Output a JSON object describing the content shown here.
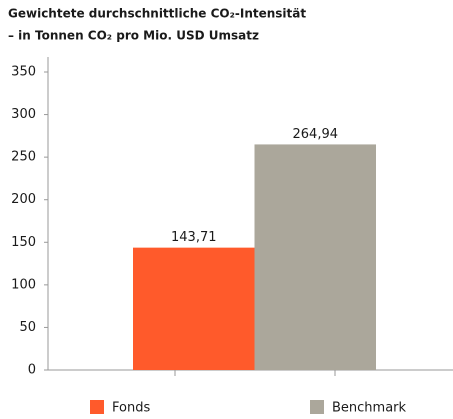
{
  "chart_data": {
    "type": "bar",
    "title": "Gewichtete durchschnittliche CO₂-Intensität",
    "subtitle": "– in Tonnen CO₂ pro Mio. USD Umsatz",
    "series": [
      {
        "name": "Fonds",
        "color": "#ff5a2b",
        "values": [
          143.71
        ],
        "value_labels": [
          "143,71"
        ]
      },
      {
        "name": "Benchmark",
        "color": "#aba79b",
        "values": [
          264.94
        ],
        "value_labels": [
          "264,94"
        ]
      }
    ],
    "ylim": [
      0,
      350
    ],
    "yticks": [
      0,
      50,
      100,
      150,
      200,
      250,
      300,
      350
    ],
    "grid": false,
    "legend": "bottom"
  }
}
